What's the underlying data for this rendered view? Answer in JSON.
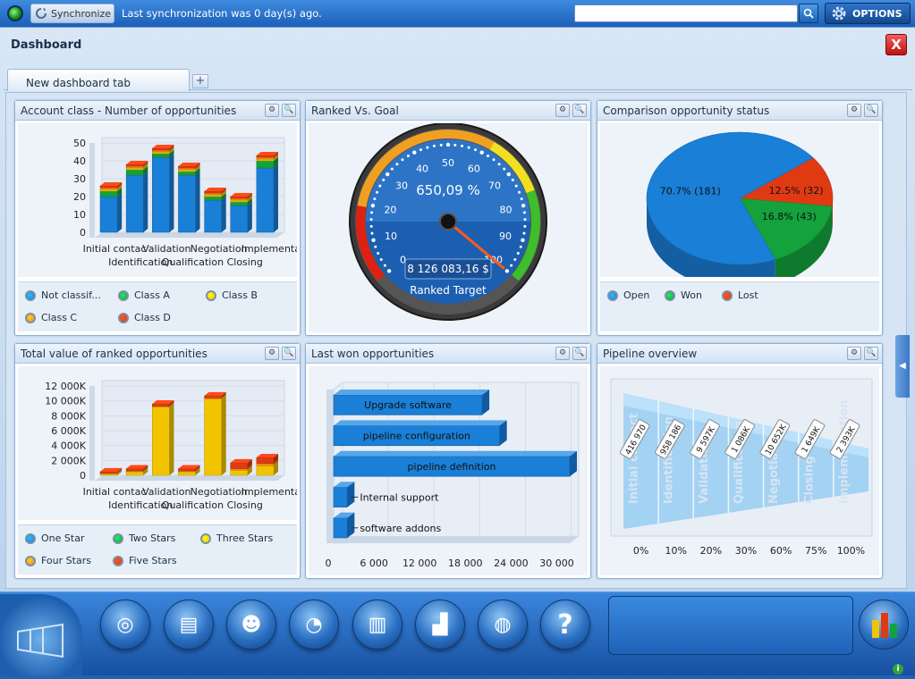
{
  "topbar": {
    "sync_label": "Synchronize",
    "sync_status": "Last synchronization was 0 day(s) ago.",
    "search_placeholder": "",
    "options_label": "OPTIONS"
  },
  "page": {
    "title": "Dashboard",
    "close_label": "X"
  },
  "tabs": [
    {
      "label": "New dashboard tab"
    }
  ],
  "tab_add_label": "+",
  "panels": {
    "account_class": {
      "title": "Account class - Number of opportunities"
    },
    "ranked_goal": {
      "title": "Ranked Vs. Goal"
    },
    "comparison": {
      "title": "Comparison opportunity status"
    },
    "total_value": {
      "title": "Total value of ranked opportunities"
    },
    "last_won": {
      "title": "Last won opportunities"
    },
    "pipeline": {
      "title": "Pipeline overview"
    }
  },
  "colors": {
    "blue": "#1a7fd6",
    "green": "#13a23c",
    "yellow": "#f2c400",
    "orange": "#f28a18",
    "red": "#e03a12"
  },
  "chart_data": [
    {
      "type": "bar",
      "title": "Account class - Number of opportunities",
      "categories": [
        "Initial contact",
        "Identification",
        "Validation",
        "Qualification",
        "Negotiation",
        "Closing",
        "Implementation"
      ],
      "category_labels_row1": [
        "Initial contac",
        "Validation",
        "Negotiation",
        "Implementa"
      ],
      "category_labels_row2": [
        "Identification",
        "Qualification",
        "Closing"
      ],
      "yticks": [
        "50",
        "40",
        "30",
        "20",
        "10",
        "0"
      ],
      "ylim": [
        0,
        50
      ],
      "series": [
        {
          "name": "Not classif...",
          "values": [
            20,
            32,
            42,
            32,
            18,
            15,
            36
          ],
          "color": "#1a7fd6"
        },
        {
          "name": "Class A",
          "values": [
            3,
            3,
            2,
            2,
            2,
            2,
            4
          ],
          "color": "#13a23c"
        },
        {
          "name": "Class B",
          "values": [
            1,
            1,
            1,
            1,
            1,
            1,
            1
          ],
          "color": "#f2c400"
        },
        {
          "name": "Class C",
          "values": [
            1,
            1,
            1,
            1,
            1,
            1,
            1
          ],
          "color": "#f28a18"
        },
        {
          "name": "Class D",
          "values": [
            1,
            1,
            1,
            1,
            1,
            1,
            1
          ],
          "color": "#e03a12"
        }
      ],
      "legend": [
        {
          "label": "Not classif...",
          "color": "#1a7fd6"
        },
        {
          "label": "Class A",
          "color": "#13a23c"
        },
        {
          "label": "Class B",
          "color": "#f2c400"
        },
        {
          "label": "Class C",
          "color": "#f28a18"
        },
        {
          "label": "Class D",
          "color": "#e03a12"
        }
      ]
    },
    {
      "type": "gauge",
      "title": "Ranked Vs. Goal",
      "ticks": [
        "0",
        "10",
        "20",
        "30",
        "40",
        "50",
        "60",
        "70",
        "80",
        "90",
        "100"
      ],
      "value_percent": 650.09,
      "value_label": "650,09 %",
      "amount_label": "8 126 083,16 $",
      "caption": "Ranked Target",
      "range": [
        0,
        100
      ]
    },
    {
      "type": "pie",
      "title": "Comparison opportunity status",
      "slices": [
        {
          "name": "Open",
          "value": 70.7,
          "count": 181,
          "label": "70.7% (181)",
          "color": "#1a7fd6"
        },
        {
          "name": "Won",
          "value": 16.8,
          "count": 43,
          "label": "16.8% (43)",
          "color": "#13a23c"
        },
        {
          "name": "Lost",
          "value": 12.5,
          "count": 32,
          "label": "12.5% (32)",
          "color": "#e03a12"
        }
      ],
      "legend": [
        {
          "label": "Open",
          "color": "#1a7fd6"
        },
        {
          "label": "Won",
          "color": "#13a23c"
        },
        {
          "label": "Lost",
          "color": "#e03a12"
        }
      ]
    },
    {
      "type": "bar",
      "title": "Total value of ranked opportunities",
      "categories": [
        "Initial contact",
        "Identification",
        "Validation",
        "Qualification",
        "Negotiation",
        "Closing",
        "Implementation"
      ],
      "category_labels_row1": [
        "Initial contac",
        "Validation",
        "Negotiation",
        "Implementa"
      ],
      "category_labels_row2": [
        "Identification",
        "Qualification",
        "Closing"
      ],
      "yticks": [
        "12 000K",
        "10 000K",
        "8 000K",
        "6 000K",
        "4 000K",
        "2 000K",
        "0"
      ],
      "ylim": [
        0,
        12000
      ],
      "series": [
        {
          "name": "One Star",
          "values": [
            0,
            0,
            0,
            0,
            0,
            0,
            0
          ],
          "color": "#1a7fd6"
        },
        {
          "name": "Two Stars",
          "values": [
            0,
            0,
            0,
            0,
            0,
            0,
            0
          ],
          "color": "#13a23c"
        },
        {
          "name": "Three Stars",
          "values": [
            200,
            500,
            9200,
            500,
            10300,
            700,
            1300
          ],
          "color": "#f2c400"
        },
        {
          "name": "Four Stars",
          "values": [
            100,
            100,
            100,
            100,
            100,
            200,
            300
          ],
          "color": "#f28a18"
        },
        {
          "name": "Five Stars",
          "values": [
            200,
            300,
            300,
            300,
            300,
            800,
            800
          ],
          "color": "#e03a12"
        }
      ],
      "legend": [
        {
          "label": "One Star",
          "color": "#1a7fd6"
        },
        {
          "label": "Two Stars",
          "color": "#13a23c"
        },
        {
          "label": "Three Stars",
          "color": "#f2c400"
        },
        {
          "label": "Four Stars",
          "color": "#f28a18"
        },
        {
          "label": "Five Stars",
          "color": "#e03a12"
        }
      ]
    },
    {
      "type": "bar",
      "orientation": "horizontal",
      "title": "Last won opportunities",
      "categories": [
        "Upgrade software",
        "pipeline configuration",
        "pipeline definition",
        "Internal support",
        "software addons"
      ],
      "values": [
        19500,
        21800,
        31000,
        1800,
        1800
      ],
      "xticks": [
        "0",
        "6 000",
        "12 000",
        "18 000",
        "24 000",
        "30 000"
      ],
      "xlim": [
        0,
        31000
      ],
      "color": "#1a7fd6"
    },
    {
      "type": "funnel",
      "title": "Pipeline overview",
      "stages": [
        {
          "name": "Initial contact",
          "value_label": "416 970",
          "pct": "0%"
        },
        {
          "name": "Identification",
          "value_label": "958 186",
          "pct": "10%"
        },
        {
          "name": "Validation",
          "value_label": "9 597K",
          "pct": "20%"
        },
        {
          "name": "Qualification",
          "value_label": "1 086K",
          "pct": "30%"
        },
        {
          "name": "Negotiation",
          "value_label": "10 652K",
          "pct": "60%"
        },
        {
          "name": "Closing",
          "value_label": "1 649K",
          "pct": "75%"
        },
        {
          "name": "Implementation",
          "value_label": "2 393K",
          "pct": "100%"
        }
      ]
    }
  ],
  "taskbar": {
    "buttons": [
      {
        "icon": "target-icon"
      },
      {
        "icon": "contacts-icon"
      },
      {
        "icon": "person-icon"
      },
      {
        "icon": "pie-chart-icon"
      },
      {
        "icon": "printer-icon"
      },
      {
        "icon": "bar-chart-icon"
      },
      {
        "icon": "lifebuoy-icon"
      },
      {
        "icon": "help-icon"
      }
    ],
    "help_label": "?",
    "info_label": "i"
  }
}
